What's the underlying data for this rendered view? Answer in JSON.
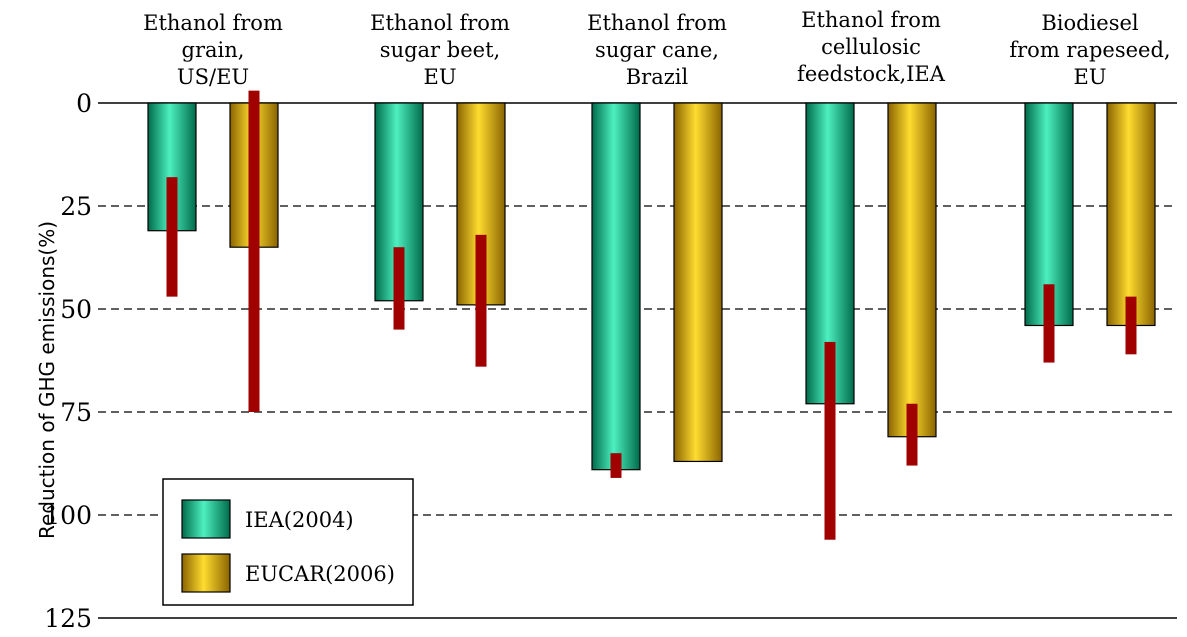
{
  "chart_data": {
    "type": "bar",
    "ylabel": "Reduction of GHG emissions(%)",
    "y_inverted": true,
    "ylim": [
      0,
      125
    ],
    "yticks": [
      0,
      25,
      50,
      75,
      100,
      125
    ],
    "grid_lines": [
      25,
      50,
      75,
      100
    ],
    "categories": [
      [
        "Ethanol from",
        "grain,",
        "US/EU"
      ],
      [
        "Ethanol from",
        "sugar beet,",
        "EU"
      ],
      [
        "Ethanol from",
        "sugar cane,",
        "Brazil"
      ],
      [
        "Ethanol from",
        "cellulosic",
        "feedstock,IEA"
      ],
      [
        "Biodiesel",
        "from rapeseed,",
        "EU"
      ]
    ],
    "series": [
      {
        "name": "IEA(2004)",
        "color": "#00c08a",
        "values": [
          31,
          48,
          89,
          73,
          54
        ],
        "range_low": [
          18,
          35,
          85,
          58,
          44
        ],
        "range_high": [
          47,
          55,
          91,
          106,
          63
        ]
      },
      {
        "name": "EUCAR(2006)",
        "color": "#f0b800",
        "values": [
          35,
          49,
          87,
          81,
          54
        ],
        "range_low": [
          -3,
          32,
          null,
          73,
          47
        ],
        "range_high": [
          75,
          64,
          null,
          88,
          61
        ]
      }
    ],
    "range_bar_color": "#a00000",
    "legend": {
      "position": "bottom-left"
    }
  }
}
